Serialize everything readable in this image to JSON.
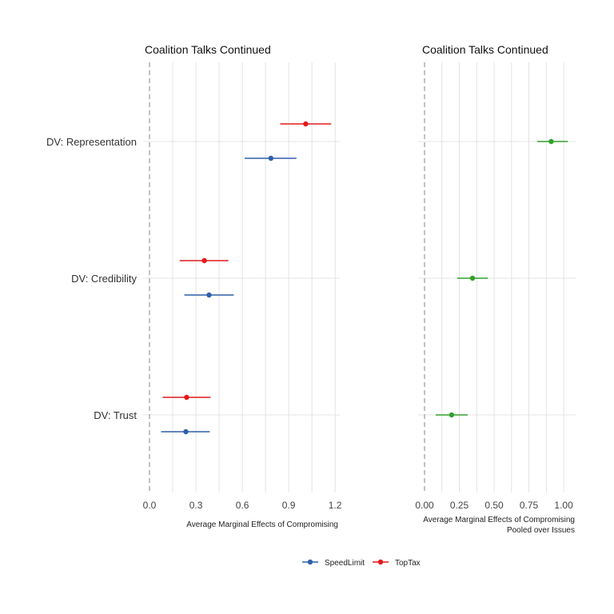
{
  "chart_data": [
    {
      "type": "scatter",
      "title": "Coalition Talks Continued",
      "xlabel": "Average Marginal Effects of Compromising",
      "ylabel": "",
      "xlim": [
        0,
        1.22
      ],
      "xticks": [
        0.0,
        0.3,
        0.6,
        0.9,
        1.2
      ],
      "xtick_labels": [
        "0.0",
        "0.3",
        "0.6",
        "0.9",
        "1.2"
      ],
      "categories": [
        "DV: Representation",
        "DV: Credibility",
        "DV: Trust"
      ],
      "series": [
        {
          "name": "TopTax",
          "color": "#e41a1c",
          "estimates": [
            1.01,
            0.355,
            0.24
          ],
          "ci_low": [
            0.845,
            0.195,
            0.085
          ],
          "ci_high": [
            1.175,
            0.51,
            0.395
          ]
        },
        {
          "name": "SpeedLimit",
          "color": "#2f5fab",
          "estimates": [
            0.785,
            0.385,
            0.235
          ],
          "ci_low": [
            0.615,
            0.225,
            0.075
          ],
          "ci_high": [
            0.95,
            0.545,
            0.39
          ]
        }
      ]
    },
    {
      "type": "scatter",
      "title": "Coalition Talks Continued",
      "xlabel": [
        "Average Marginal Effects of Compromising",
        "Pooled over Issues"
      ],
      "ylabel": "",
      "xlim": [
        0,
        1.08
      ],
      "xticks": [
        0.0,
        0.25,
        0.5,
        0.75,
        1.0
      ],
      "xtick_labels": [
        "0.00",
        "0.25",
        "0.50",
        "0.75",
        "1.00"
      ],
      "categories": [
        "DV: Representation",
        "DV: Credibility",
        "DV: Trust"
      ],
      "series": [
        {
          "color": "#33a02c",
          "estimates": [
            0.91,
            0.345,
            0.195
          ],
          "ci_low": [
            0.81,
            0.235,
            0.08
          ],
          "ci_high": [
            1.03,
            0.455,
            0.31
          ]
        }
      ]
    }
  ],
  "legend": {
    "position": "bottom",
    "entries": [
      {
        "name": "SpeedLimit",
        "color": "#2f5fab"
      },
      {
        "name": "TopTax",
        "color": "#e41a1c"
      }
    ]
  }
}
